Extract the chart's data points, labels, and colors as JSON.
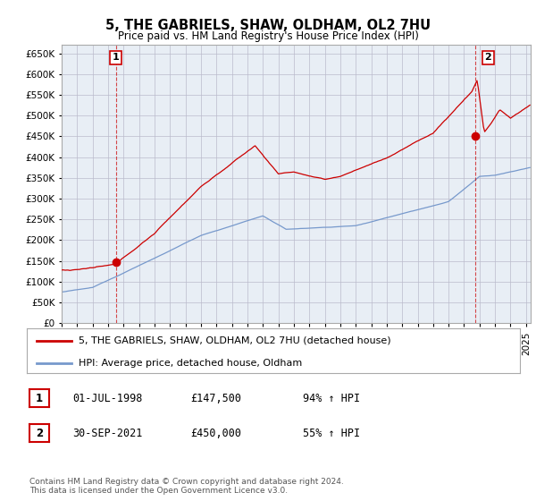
{
  "title": "5, THE GABRIELS, SHAW, OLDHAM, OL2 7HU",
  "subtitle": "Price paid vs. HM Land Registry's House Price Index (HPI)",
  "ylim": [
    0,
    670000
  ],
  "yticks": [
    0,
    50000,
    100000,
    150000,
    200000,
    250000,
    300000,
    350000,
    400000,
    450000,
    500000,
    550000,
    600000,
    650000
  ],
  "xlim_start": 1995.0,
  "xlim_end": 2025.3,
  "red_color": "#cc0000",
  "blue_color": "#7799cc",
  "plot_bg_color": "#e8eef5",
  "purchase1": {
    "date_num": 1998.5,
    "price": 147500,
    "label": "1"
  },
  "purchase2": {
    "date_num": 2021.75,
    "price": 450000,
    "label": "2"
  },
  "legend_entries": [
    "5, THE GABRIELS, SHAW, OLDHAM, OL2 7HU (detached house)",
    "HPI: Average price, detached house, Oldham"
  ],
  "table_entries": [
    {
      "num": "1",
      "date": "01-JUL-1998",
      "price": "£147,500",
      "change": "94% ↑ HPI"
    },
    {
      "num": "2",
      "date": "30-SEP-2021",
      "price": "£450,000",
      "change": "55% ↑ HPI"
    }
  ],
  "footer": "Contains HM Land Registry data © Crown copyright and database right 2024.\nThis data is licensed under the Open Government Licence v3.0.",
  "background_color": "#ffffff",
  "grid_color": "#bbbbcc"
}
